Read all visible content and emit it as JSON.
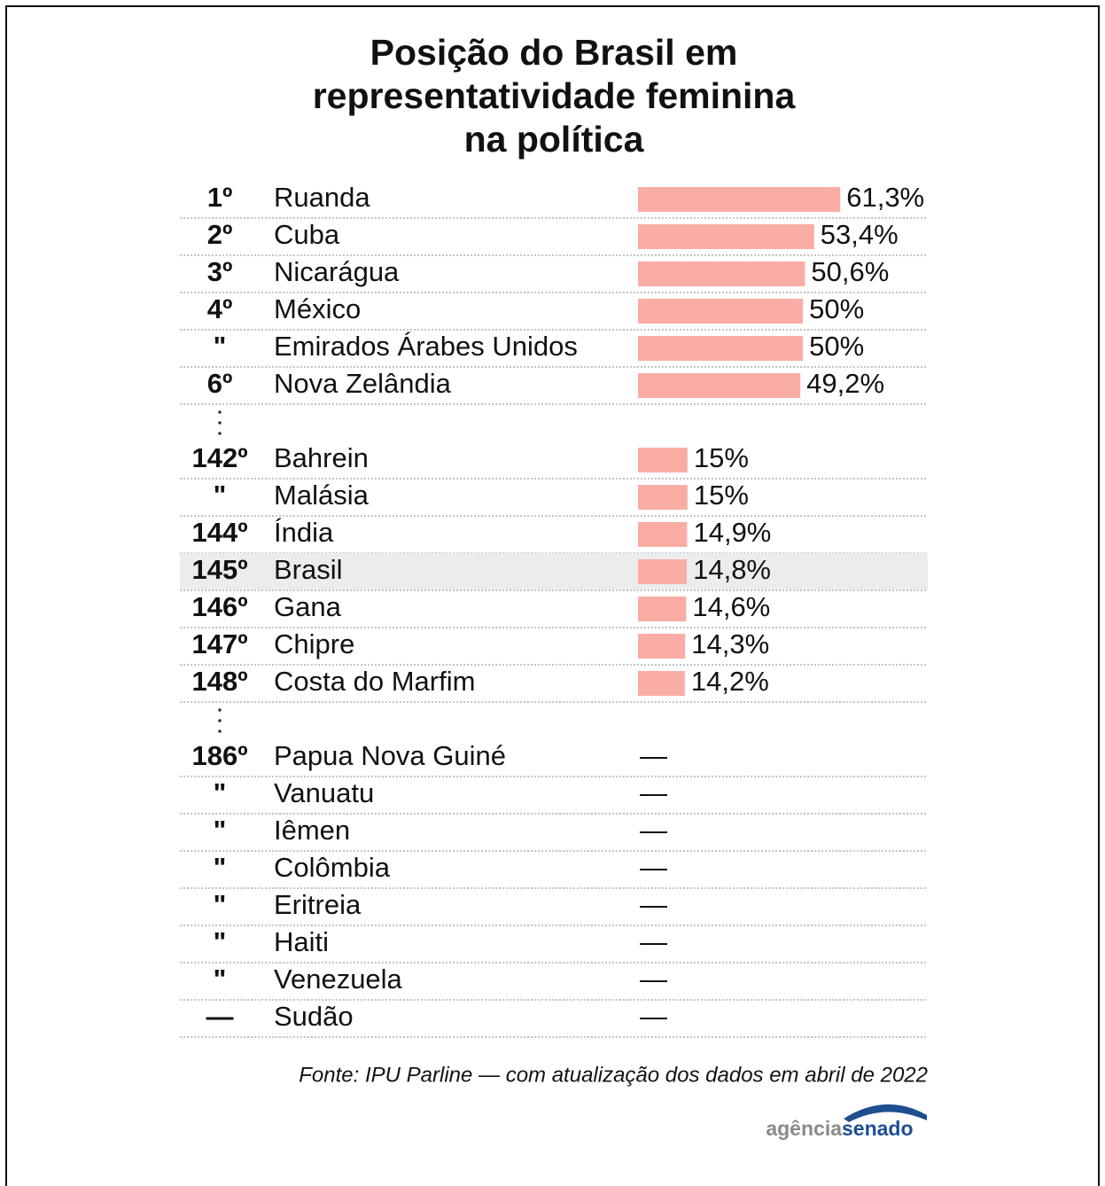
{
  "chart_data": {
    "type": "bar",
    "title": [
      "Posição do Brasil em",
      "representatividade feminina",
      "na política"
    ],
    "ranks": [
      "1º",
      "2º",
      "3º",
      "4º",
      "\"",
      "6º",
      null,
      "142º",
      "\"",
      "144º",
      "145º",
      "146º",
      "147º",
      "148º",
      null,
      "186º",
      "\"",
      "\"",
      "\"",
      "\"",
      "\"",
      "\"",
      "—"
    ],
    "categories": [
      "Ruanda",
      "Cuba",
      "Nicarágua",
      "México",
      "Emirados Árabes Unidos",
      "Nova Zelândia",
      null,
      "Bahrein",
      "Malásia",
      "Índia",
      "Brasil",
      "Gana",
      "Chipre",
      "Costa do Marfim",
      null,
      "Papua Nova Guiné",
      "Vanuatu",
      "Iêmen",
      "Colômbia",
      "Eritreia",
      "Haiti",
      "Venezuela",
      "Sudão"
    ],
    "values": [
      61.3,
      53.4,
      50.6,
      50,
      50,
      49.2,
      null,
      15,
      15,
      14.9,
      14.8,
      14.6,
      14.3,
      14.2,
      null,
      null,
      null,
      null,
      null,
      null,
      null,
      null,
      null
    ],
    "value_labels": [
      "61,3%",
      "53,4%",
      "50,6%",
      "50%",
      "50%",
      "49,2%",
      null,
      "15%",
      "15%",
      "14,9%",
      "14,8%",
      "14,6%",
      "14,3%",
      "14,2%",
      null,
      "—",
      "—",
      "—",
      "—",
      "—",
      "—",
      "—",
      "—"
    ],
    "color": "#f9ada5",
    "highlight": "Brasil",
    "highlight_color": "#ececec",
    "xlim": [
      0,
      65
    ],
    "source": "Fonte: IPU Parline — com atualização dos dados em abril de 2022",
    "logo": [
      "agência",
      "senado"
    ]
  }
}
